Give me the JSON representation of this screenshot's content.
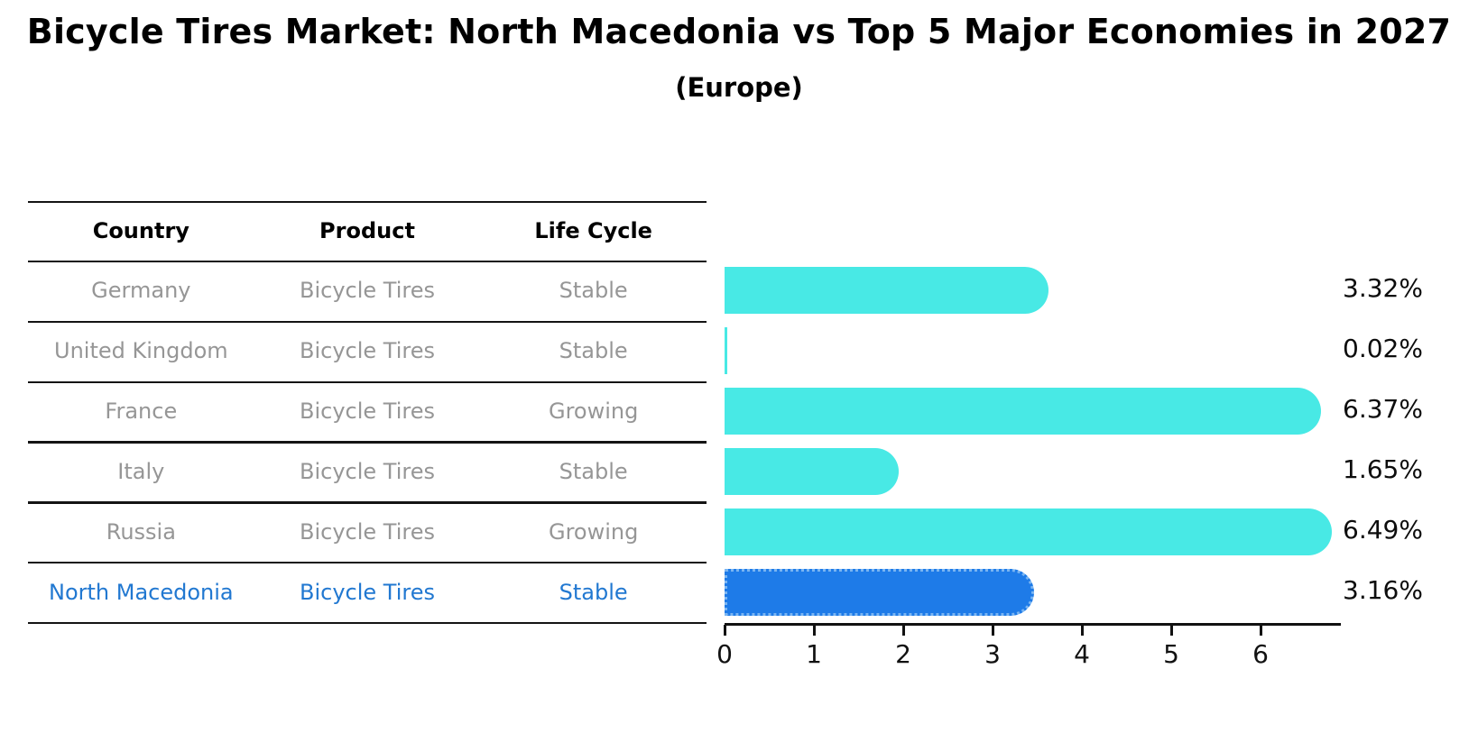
{
  "title": "Bicycle Tires Market: North Macedonia vs Top 5 Major Economies in 2027",
  "subtitle": "(Europe)",
  "table": {
    "headers": [
      "Country",
      "Product",
      "Life Cycle"
    ],
    "rows": [
      {
        "country": "Germany",
        "product": "Bicycle Tires",
        "life_cycle": "Stable",
        "highlighted": false
      },
      {
        "country": "United Kingdom",
        "product": "Bicycle Tires",
        "life_cycle": "Stable",
        "highlighted": false
      },
      {
        "country": "France",
        "product": "Bicycle Tires",
        "life_cycle": "Growing",
        "highlighted": false
      },
      {
        "country": "Italy",
        "product": "Bicycle Tires",
        "life_cycle": "Stable",
        "highlighted": false
      },
      {
        "country": "Russia",
        "product": "Bicycle Tires",
        "life_cycle": "Growing",
        "highlighted": false
      },
      {
        "country": "North Macedonia",
        "product": "Bicycle Tires",
        "life_cycle": "Stable",
        "highlighted": true
      }
    ]
  },
  "chart_data": {
    "type": "bar",
    "orientation": "horizontal",
    "title": "Bicycle Tires Market: North Macedonia vs Top 5 Major Economies in 2027",
    "subtitle": "(Europe)",
    "categories": [
      "Germany",
      "United Kingdom",
      "France",
      "Italy",
      "Russia",
      "North Macedonia"
    ],
    "values": [
      3.32,
      0.02,
      6.37,
      1.65,
      6.49,
      3.16
    ],
    "value_labels": [
      "3.32%",
      "0.02%",
      "6.37%",
      "1.65%",
      "6.49%",
      "3.16%"
    ],
    "x_ticks": [
      "0",
      "1",
      "2",
      "3",
      "4",
      "5",
      "6"
    ],
    "xlim": [
      0,
      6.9
    ],
    "xlabel": "",
    "ylabel": "",
    "grid": false,
    "legend_position": "none",
    "highlight_index": 5,
    "colors": {
      "bar": "#48e9e5",
      "highlight_bar": "#1e7be8",
      "highlight_text": "#2178d1",
      "row_text": "#969696",
      "header_text": "#000000",
      "axis": "#111111"
    }
  }
}
